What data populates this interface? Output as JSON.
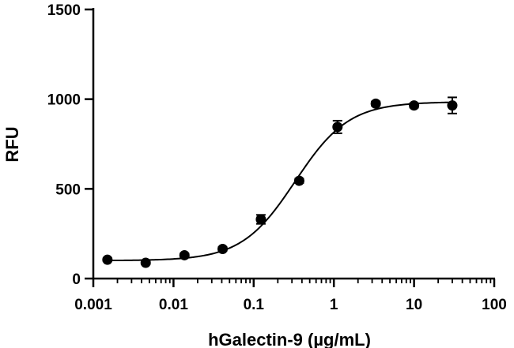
{
  "chart_data": {
    "type": "scatter",
    "title": "",
    "xlabel": "hGalectin-9 (µg/mL)",
    "ylabel": "RFU",
    "x_scale": "log",
    "xlim": [
      0.001,
      100
    ],
    "ylim": [
      0,
      1500
    ],
    "x_ticks": [
      0.001,
      0.01,
      0.1,
      1,
      10,
      100
    ],
    "x_tick_labels": [
      "0.001",
      "0.01",
      "0.1",
      "1",
      "10",
      "100"
    ],
    "y_ticks": [
      0,
      500,
      1000,
      1500
    ],
    "y_tick_labels": [
      "0",
      "500",
      "1000",
      "1500"
    ],
    "grid": false,
    "legend": "none",
    "colors": {
      "points": "#000000",
      "curve": "#000000",
      "axes": "#000000"
    },
    "points": [
      {
        "x": 0.0015,
        "y": 105,
        "err": 8
      },
      {
        "x": 0.0045,
        "y": 88,
        "err": 8
      },
      {
        "x": 0.0137,
        "y": 130,
        "err": 10
      },
      {
        "x": 0.041,
        "y": 165,
        "err": 10
      },
      {
        "x": 0.123,
        "y": 330,
        "err": 25
      },
      {
        "x": 0.37,
        "y": 545,
        "err": 12
      },
      {
        "x": 1.11,
        "y": 845,
        "err": 35
      },
      {
        "x": 3.33,
        "y": 975,
        "err": 12
      },
      {
        "x": 10,
        "y": 965,
        "err": 12
      },
      {
        "x": 30,
        "y": 965,
        "err": 45
      }
    ],
    "fit": {
      "model": "four-parameter logistic",
      "bottom": 100,
      "top": 985,
      "ec50": 0.33,
      "hill": 1.3
    }
  }
}
